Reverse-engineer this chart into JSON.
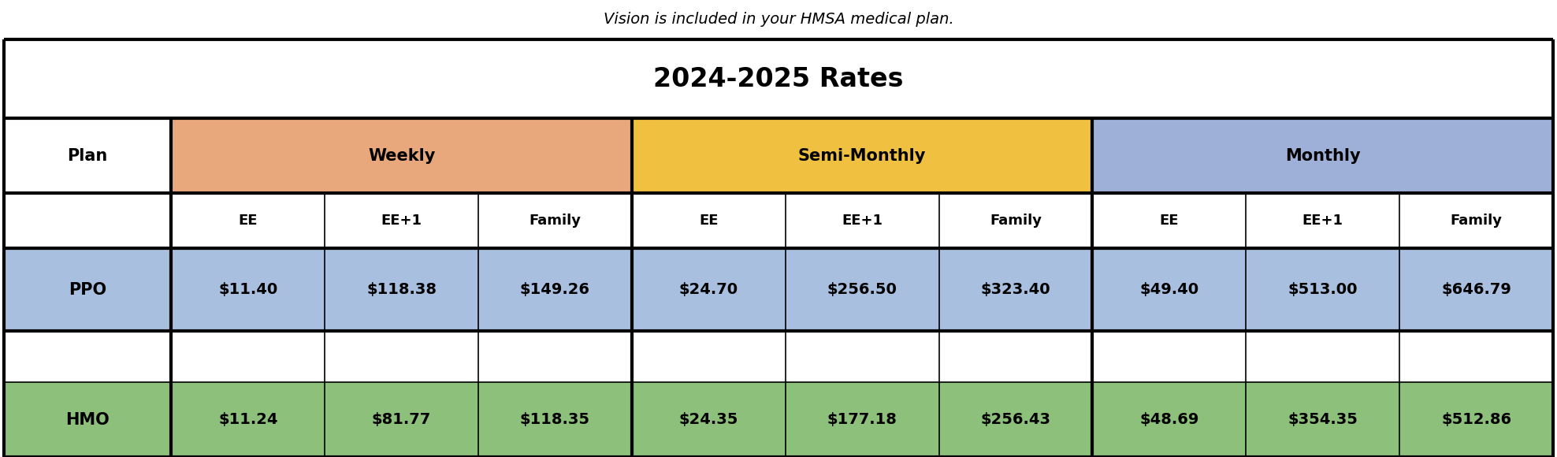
{
  "title": "2024-2025 Rates",
  "subtitle": "Vision is included in your HMSA medical plan.",
  "colors": {
    "weekly_header": "#E8A87C",
    "semi_monthly_header": "#F0C040",
    "monthly_header": "#9FB0D8",
    "ppo_row": "#A8BFE0",
    "hmo_row": "#8DC07A",
    "white": "#FFFFFF",
    "border": "#000000"
  },
  "data_ppo": [
    "$11.40",
    "$118.38",
    "$149.26",
    "$24.70",
    "$256.50",
    "$323.40",
    "$49.40",
    "$513.00",
    "$646.79"
  ],
  "data_hmo": [
    "$11.24",
    "$81.77",
    "$118.35",
    "$24.35",
    "$177.18",
    "$256.43",
    "$48.69",
    "$354.35",
    "$512.86"
  ],
  "sub_labels": [
    "EE",
    "EE+1",
    "Family",
    "EE",
    "EE+1",
    "Family",
    "EE",
    "EE+1",
    "Family"
  ],
  "figsize": [
    19.76,
    5.8
  ],
  "dpi": 100,
  "subtitle_fontsize": 14,
  "title_fontsize": 24,
  "header_fontsize": 15,
  "sub_header_fontsize": 13,
  "data_fontsize": 14,
  "lw_thick": 3.0,
  "lw_thin": 1.2
}
